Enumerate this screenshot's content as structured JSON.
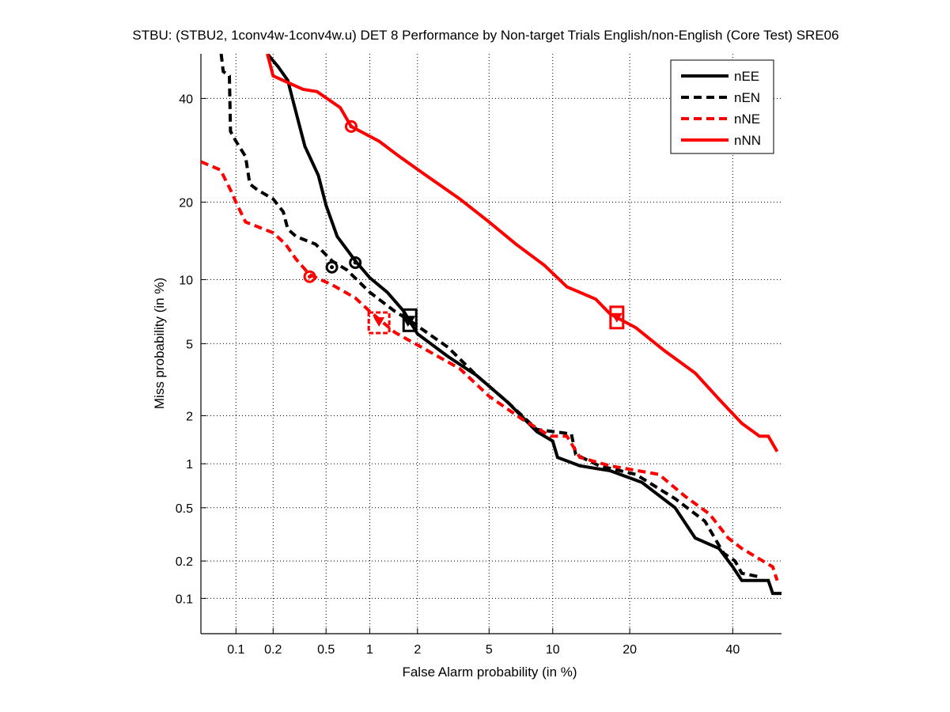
{
  "chart_data": {
    "type": "line",
    "scale": "normal-deviate (probit) on both axes",
    "title": "STBU: (STBU2, 1conv4w-1conv4w.u) DET 8 Performance by Non-target Trials English/non-English (Core Test) SRE06",
    "xlabel": "False Alarm probability (in %)",
    "ylabel": "Miss probability (in %)",
    "xlim": [
      0.05,
      51
    ],
    "ylim": [
      0.05,
      50
    ],
    "grid": true,
    "legend_position": "top-right",
    "x_ticks": [
      {
        "value": 0.1,
        "label": "0.1"
      },
      {
        "value": 0.2,
        "label": "0.2"
      },
      {
        "value": 0.5,
        "label": "0.5"
      },
      {
        "value": 1,
        "label": "1"
      },
      {
        "value": 2,
        "label": "2"
      },
      {
        "value": 5,
        "label": "5"
      },
      {
        "value": 10,
        "label": "10"
      },
      {
        "value": 20,
        "label": "20"
      },
      {
        "value": 40,
        "label": "40"
      }
    ],
    "y_ticks": [
      {
        "value": 0.1,
        "label": "0.1"
      },
      {
        "value": 0.2,
        "label": "0.2"
      },
      {
        "value": 0.5,
        "label": "0.5"
      },
      {
        "value": 1,
        "label": "1"
      },
      {
        "value": 2,
        "label": "2"
      },
      {
        "value": 5,
        "label": "5"
      },
      {
        "value": 10,
        "label": "10"
      },
      {
        "value": 20,
        "label": "20"
      },
      {
        "value": 40,
        "label": "40"
      }
    ],
    "series": [
      {
        "name": "nEE",
        "color": "#000000",
        "dash": "solid",
        "points": [
          [
            0.18,
            50
          ],
          [
            0.22,
            47
          ],
          [
            0.26,
            44
          ],
          [
            0.3,
            37
          ],
          [
            0.35,
            30
          ],
          [
            0.44,
            24.5
          ],
          [
            0.5,
            19.5
          ],
          [
            0.6,
            15
          ],
          [
            0.8,
            12
          ],
          [
            1,
            10.2
          ],
          [
            1.3,
            8.8
          ],
          [
            1.65,
            7.2
          ],
          [
            2,
            5.6
          ],
          [
            3,
            4.3
          ],
          [
            4.3,
            3.4
          ],
          [
            6.2,
            2.4
          ],
          [
            8.5,
            1.6
          ],
          [
            10,
            1.4
          ],
          [
            10.5,
            1.1
          ],
          [
            13,
            0.97
          ],
          [
            17,
            0.9
          ],
          [
            22,
            0.75
          ],
          [
            28,
            0.5
          ],
          [
            32,
            0.3
          ],
          [
            37,
            0.25
          ],
          [
            40,
            0.18
          ],
          [
            42,
            0.14
          ],
          [
            48,
            0.14
          ],
          [
            49,
            0.11
          ],
          [
            51,
            0.11
          ]
        ],
        "min_dcf_point": [
          0.8,
          11.8
        ],
        "act_dcf_point": [
          1.8,
          6.5
        ]
      },
      {
        "name": "nEN",
        "color": "#000000",
        "dash": "dashed",
        "points": [
          [
            0.075,
            50
          ],
          [
            0.078,
            46
          ],
          [
            0.088,
            45
          ],
          [
            0.09,
            33
          ],
          [
            0.1,
            31
          ],
          [
            0.12,
            28
          ],
          [
            0.13,
            23
          ],
          [
            0.15,
            22
          ],
          [
            0.2,
            20.5
          ],
          [
            0.24,
            18.5
          ],
          [
            0.26,
            16
          ],
          [
            0.3,
            15
          ],
          [
            0.42,
            14
          ],
          [
            0.55,
            12
          ],
          [
            0.7,
            11
          ],
          [
            1,
            8.8
          ],
          [
            1.45,
            7.2
          ],
          [
            1.8,
            6.5
          ],
          [
            3,
            4.8
          ],
          [
            4.3,
            3.4
          ],
          [
            6.2,
            2.4
          ],
          [
            8.5,
            1.65
          ],
          [
            12,
            1.55
          ],
          [
            12.5,
            1.15
          ],
          [
            15.5,
            0.97
          ],
          [
            21,
            0.85
          ],
          [
            28,
            0.58
          ],
          [
            34,
            0.4
          ],
          [
            38,
            0.23
          ],
          [
            40.5,
            0.2
          ],
          [
            42,
            0.16
          ],
          [
            46,
            0.15
          ]
        ],
        "min_dcf_point": [
          0.55,
          11.3
        ],
        "act_dcf_point": [
          1.75,
          6.4
        ]
      },
      {
        "name": "nNE",
        "color": "#ff0000",
        "dash": "dashed",
        "points": [
          [
            0.05,
            27
          ],
          [
            0.074,
            25.5
          ],
          [
            0.09,
            22
          ],
          [
            0.1,
            20
          ],
          [
            0.12,
            17
          ],
          [
            0.2,
            15.5
          ],
          [
            0.25,
            14
          ],
          [
            0.3,
            12.2
          ],
          [
            0.38,
            10.5
          ],
          [
            0.55,
            9.5
          ],
          [
            0.8,
            8.3
          ],
          [
            1,
            7.2
          ],
          [
            1.45,
            5.7
          ],
          [
            2.3,
            4.6
          ],
          [
            3.5,
            3.7
          ],
          [
            5,
            2.6
          ],
          [
            7.3,
            1.9
          ],
          [
            9.8,
            1.5
          ],
          [
            11.5,
            1.5
          ],
          [
            13,
            1.1
          ],
          [
            17,
            0.97
          ],
          [
            25,
            0.85
          ],
          [
            30,
            0.6
          ],
          [
            35,
            0.45
          ],
          [
            39,
            0.3
          ],
          [
            42,
            0.25
          ],
          [
            49,
            0.18
          ],
          [
            50,
            0.14
          ]
        ],
        "min_dcf_point": [
          0.38,
          10.3
        ],
        "act_dcf_point": [
          1.15,
          6.4
        ]
      },
      {
        "name": "nNN",
        "color": "#ff0000",
        "dash": "solid",
        "points": [
          [
            0.18,
            50
          ],
          [
            0.2,
            45
          ],
          [
            0.34,
            42
          ],
          [
            0.43,
            41.5
          ],
          [
            0.63,
            38
          ],
          [
            0.75,
            34
          ],
          [
            1.15,
            31
          ],
          [
            1.55,
            28
          ],
          [
            2.25,
            24.5
          ],
          [
            3.5,
            20.5
          ],
          [
            5,
            17
          ],
          [
            6.8,
            14
          ],
          [
            9.2,
            11.5
          ],
          [
            11.5,
            9.3
          ],
          [
            15,
            8.2
          ],
          [
            17,
            7
          ],
          [
            21,
            6
          ],
          [
            26,
            4.6
          ],
          [
            32,
            3.5
          ],
          [
            37,
            2.5
          ],
          [
            42,
            1.8
          ],
          [
            46,
            1.5
          ],
          [
            48,
            1.5
          ],
          [
            50,
            1.2
          ]
        ],
        "min_dcf_point": [
          0.75,
          34
        ],
        "act_dcf_point": [
          18,
          6.7
        ]
      }
    ]
  }
}
